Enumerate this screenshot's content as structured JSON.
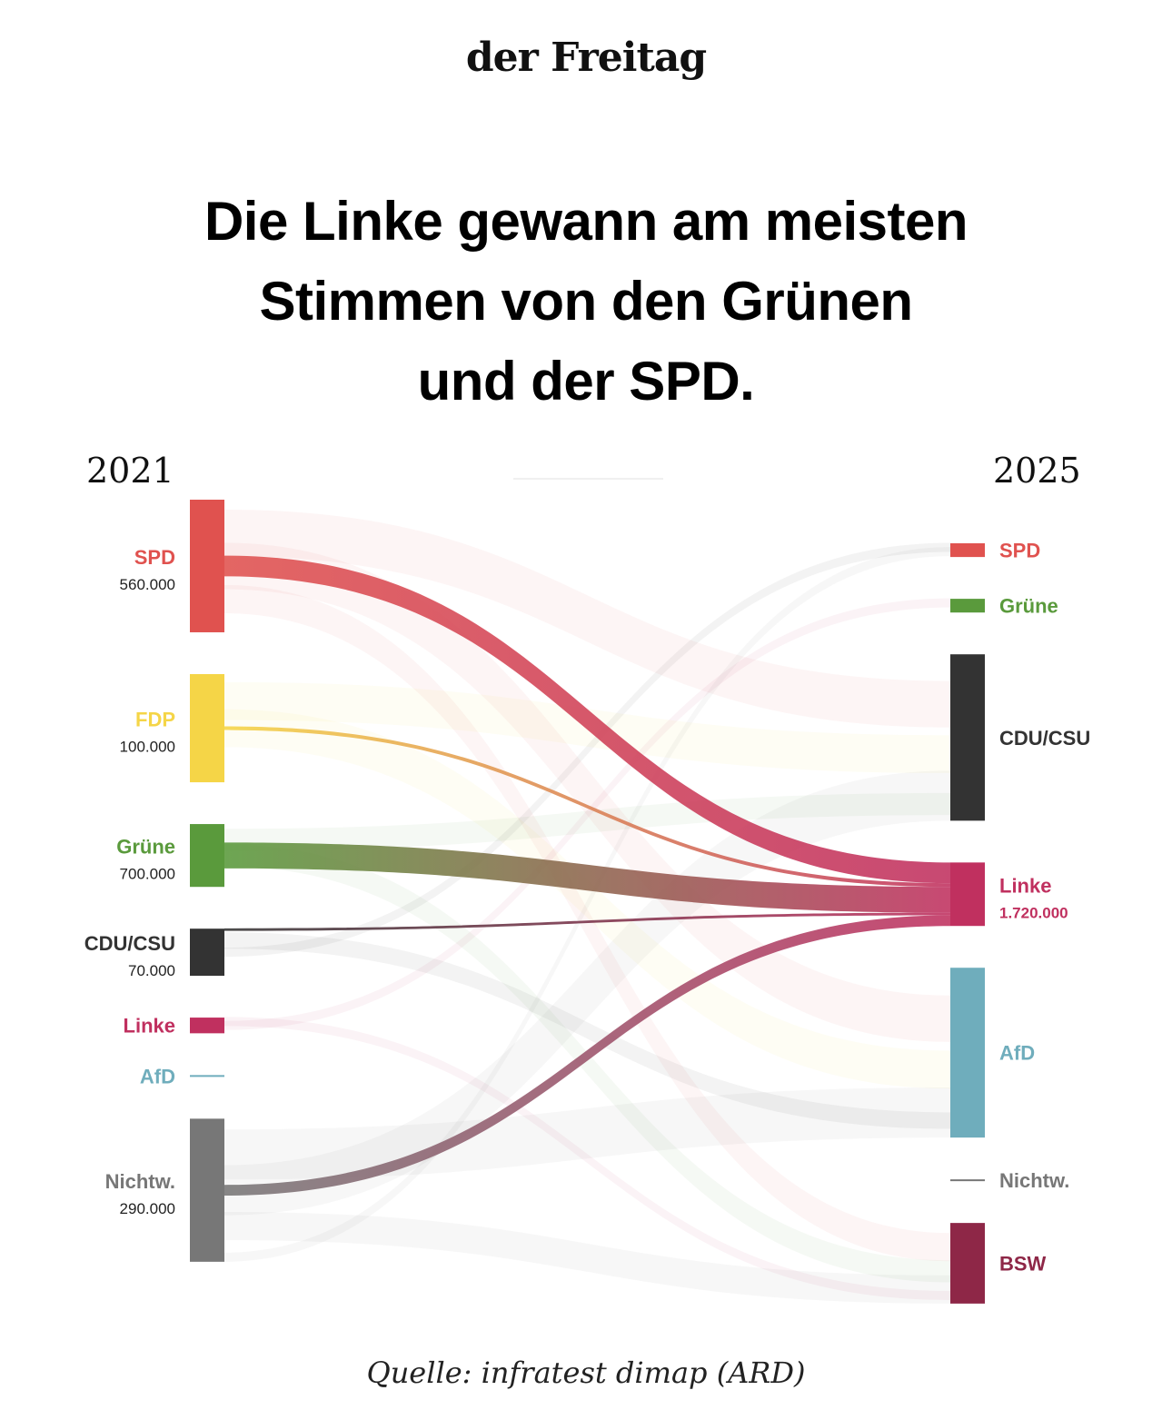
{
  "header": {
    "logo": "der Freitag",
    "headline_lines": [
      "Die Linke gewann am meisten",
      "Stimmen von den Grünen",
      "und der SPD."
    ]
  },
  "source": "Quelle: infratest dimap (ARD)",
  "chart_data": {
    "type": "sankey",
    "title": "Die Linke gewann am meisten Stimmen von den Grünen und der SPD.",
    "left_year": "2021",
    "right_year": "2025",
    "target_highlight": "Linke",
    "left_nodes": [
      {
        "id": "SPD",
        "label": "SPD",
        "value_label": "560.000",
        "color": "#e0524f",
        "weight": 3.8
      },
      {
        "id": "FDP",
        "label": "FDP",
        "value_label": "100.000",
        "color": "#f5d547",
        "weight": 3.1
      },
      {
        "id": "Gruene",
        "label": "Grüne",
        "value_label": "700.000",
        "color": "#5a9a3c",
        "weight": 1.8
      },
      {
        "id": "CDU",
        "label": "CDU/CSU",
        "value_label": "70.000",
        "color": "#333333",
        "weight": 1.35
      },
      {
        "id": "Linke",
        "label": "Linke",
        "value_label": "",
        "color": "#c0305f",
        "weight": 0.45
      },
      {
        "id": "AfD",
        "label": "AfD",
        "value_label": "",
        "color": "#6fadbc",
        "weight": 0.03
      },
      {
        "id": "Nichtw",
        "label": "Nichtw.",
        "value_label": "290.000",
        "color": "#777777",
        "weight": 4.1
      }
    ],
    "right_nodes": [
      {
        "id": "SPD",
        "label": "SPD",
        "value_label": "",
        "color": "#e0524f",
        "weight": 0.4
      },
      {
        "id": "Gruene",
        "label": "Grüne",
        "value_label": "",
        "color": "#5a9a3c",
        "weight": 0.4
      },
      {
        "id": "CDU",
        "label": "CDU/CSU",
        "value_label": "",
        "color": "#333333",
        "weight": 4.85
      },
      {
        "id": "Linke",
        "label": "Linke",
        "value_label": "1.720.000",
        "color": "#c0305f",
        "weight": 1.85
      },
      {
        "id": "AfD",
        "label": "AfD",
        "value_label": "",
        "color": "#6fadbc",
        "weight": 4.95
      },
      {
        "id": "Nichtw",
        "label": "Nichtw.",
        "value_label": "",
        "color": "#777777",
        "weight": 0.03
      },
      {
        "id": "BSW",
        "label": "BSW",
        "value_label": "",
        "color": "#8e2747",
        "weight": 2.35
      }
    ],
    "highlighted_flows": [
      {
        "from": "SPD",
        "to": "Linke",
        "value": 560000
      },
      {
        "from": "FDP",
        "to": "Linke",
        "value": 100000
      },
      {
        "from": "Gruene",
        "to": "Linke",
        "value": 700000
      },
      {
        "from": "CDU",
        "to": "Linke",
        "value": 70000
      },
      {
        "from": "Nichtw",
        "to": "Linke",
        "value": 290000
      }
    ],
    "background_flows": [
      {
        "from": "SPD",
        "to": "CDU"
      },
      {
        "from": "SPD",
        "to": "AfD"
      },
      {
        "from": "SPD",
        "to": "BSW"
      },
      {
        "from": "FDP",
        "to": "CDU"
      },
      {
        "from": "FDP",
        "to": "AfD"
      },
      {
        "from": "Gruene",
        "to": "CDU"
      },
      {
        "from": "Gruene",
        "to": "BSW"
      },
      {
        "from": "CDU",
        "to": "AfD"
      },
      {
        "from": "CDU",
        "to": "SPD"
      },
      {
        "from": "Linke",
        "to": "BSW"
      },
      {
        "from": "Linke",
        "to": "Gruene"
      },
      {
        "from": "Nichtw",
        "to": "AfD"
      },
      {
        "from": "Nichtw",
        "to": "CDU"
      },
      {
        "from": "Nichtw",
        "to": "BSW"
      },
      {
        "from": "Nichtw",
        "to": "SPD"
      }
    ]
  }
}
